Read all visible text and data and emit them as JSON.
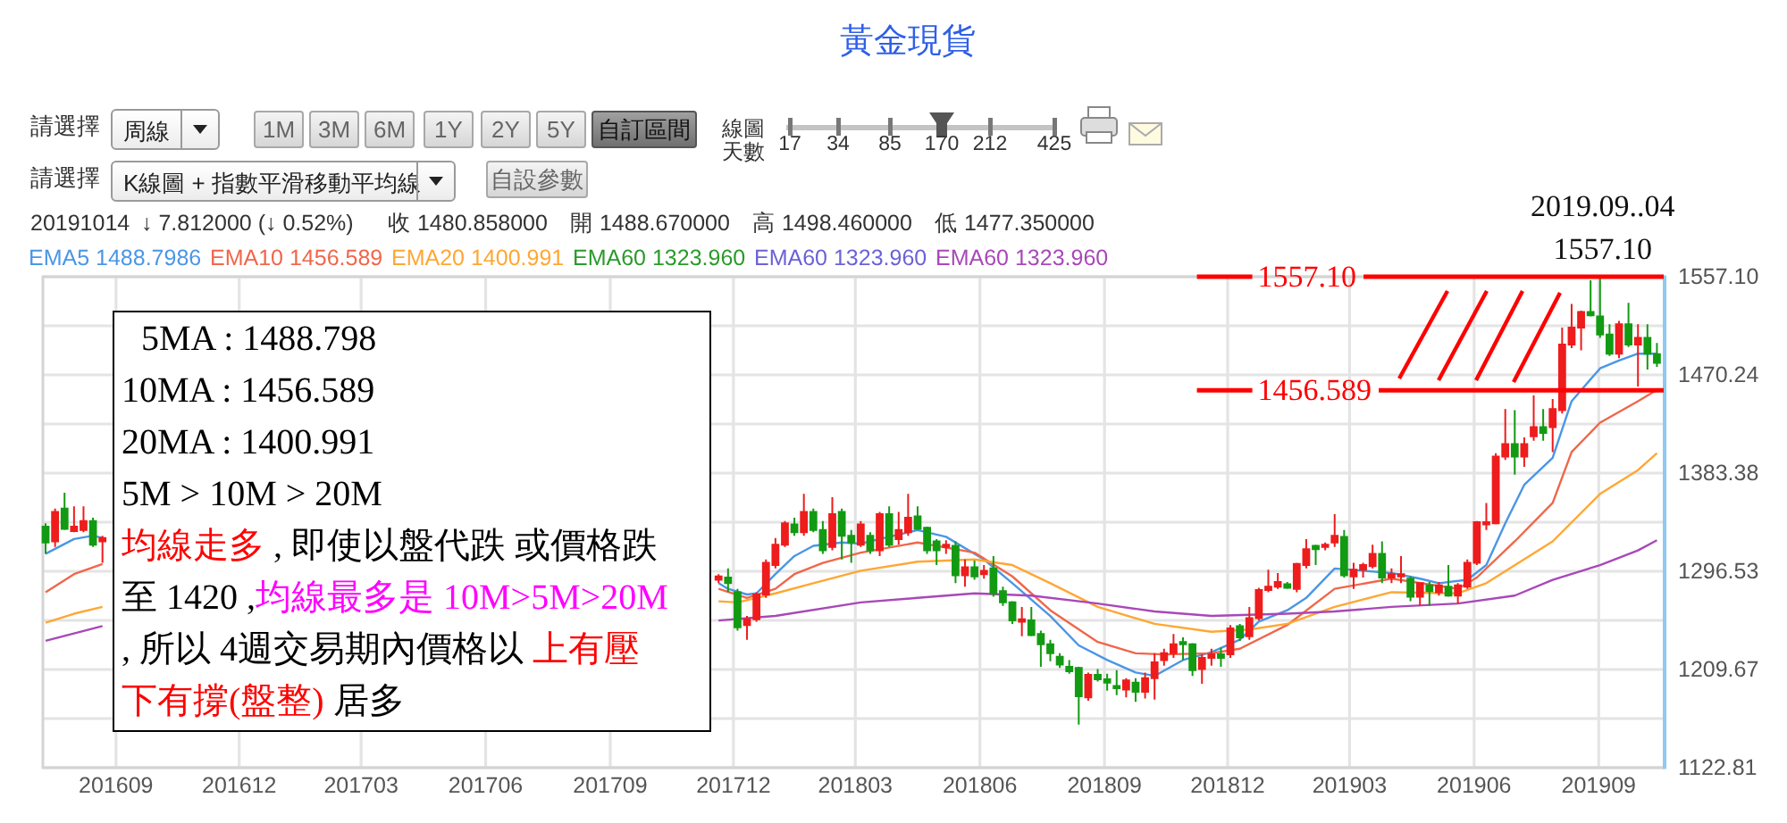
{
  "chart_data": {
    "type": "candlestick",
    "title": "黃金現貨",
    "x": [
      "2016-07-11",
      "2016-07-18",
      "2016-07-25",
      "2016-08-01",
      "2016-08-08",
      "2016-08-15",
      "2016-08-22",
      "2017-11-20",
      "2017-11-27",
      "2017-12-04",
      "2017-12-11",
      "2017-12-18",
      "2017-12-25",
      "2018-01-01",
      "2018-01-08",
      "2018-01-15",
      "2018-01-22",
      "2018-01-29",
      "2018-02-05",
      "2018-02-12",
      "2018-02-19",
      "2018-02-26",
      "2018-03-05",
      "2018-03-12",
      "2018-03-19",
      "2018-03-26",
      "2018-04-02",
      "2018-04-09",
      "2018-04-16",
      "2018-04-23",
      "2018-04-30",
      "2018-05-07",
      "2018-05-14",
      "2018-05-21",
      "2018-05-28",
      "2018-06-04",
      "2018-06-11",
      "2018-06-18",
      "2018-06-25",
      "2018-07-02",
      "2018-07-09",
      "2018-07-16",
      "2018-07-23",
      "2018-07-30",
      "2018-08-06",
      "2018-08-13",
      "2018-08-20",
      "2018-08-27",
      "2018-09-03",
      "2018-09-10",
      "2018-09-17",
      "2018-09-24",
      "2018-10-01",
      "2018-10-08",
      "2018-10-15",
      "2018-10-22",
      "2018-10-29",
      "2018-11-05",
      "2018-11-12",
      "2018-11-19",
      "2018-11-26",
      "2018-12-03",
      "2018-12-10",
      "2018-12-17",
      "2018-12-24",
      "2018-12-31",
      "2019-01-07",
      "2019-01-14",
      "2019-01-21",
      "2019-01-28",
      "2019-02-04",
      "2019-02-11",
      "2019-02-18",
      "2019-02-25",
      "2019-03-04",
      "2019-03-11",
      "2019-03-18",
      "2019-03-25",
      "2019-04-01",
      "2019-04-08",
      "2019-04-15",
      "2019-04-22",
      "2019-04-29",
      "2019-05-06",
      "2019-05-13",
      "2019-05-20",
      "2019-05-27",
      "2019-06-03",
      "2019-06-10",
      "2019-06-17",
      "2019-06-24",
      "2019-07-01",
      "2019-07-08",
      "2019-07-15",
      "2019-07-22",
      "2019-07-29",
      "2019-08-05",
      "2019-08-12",
      "2019-08-19",
      "2019-08-26",
      "2019-09-02",
      "2019-09-09",
      "2019-09-16",
      "2019-09-23",
      "2019-09-30",
      "2019-10-07",
      "2019-10-14"
    ],
    "ohlc": [
      [
        1336,
        1339,
        1312,
        1322
      ],
      [
        1323,
        1352,
        1318,
        1349
      ],
      [
        1352,
        1366,
        1333,
        1334
      ],
      [
        1332,
        1354,
        1331,
        1336
      ],
      [
        1333,
        1354,
        1331,
        1341
      ],
      [
        1341,
        1344,
        1318,
        1320
      ],
      [
        1323,
        1328,
        1304,
        1326
      ],
      [
        1289,
        1294,
        1286,
        1292
      ],
      [
        1291,
        1299,
        1278,
        1286
      ],
      [
        1278,
        1281,
        1244,
        1247
      ],
      [
        1249,
        1257,
        1236,
        1254
      ],
      [
        1254,
        1278,
        1252,
        1276
      ],
      [
        1276,
        1307,
        1273,
        1304
      ],
      [
        1302,
        1326,
        1299,
        1320
      ],
      [
        1320,
        1341,
        1318,
        1339
      ],
      [
        1338,
        1344,
        1328,
        1331
      ],
      [
        1331,
        1365,
        1328,
        1349
      ],
      [
        1349,
        1352,
        1331,
        1333
      ],
      [
        1333,
        1341,
        1312,
        1315
      ],
      [
        1318,
        1362,
        1315,
        1347
      ],
      [
        1349,
        1352,
        1307,
        1328
      ],
      [
        1328,
        1333,
        1304,
        1322
      ],
      [
        1320,
        1341,
        1318,
        1338
      ],
      [
        1328,
        1331,
        1312,
        1315
      ],
      [
        1315,
        1349,
        1310,
        1347
      ],
      [
        1347,
        1354,
        1318,
        1320
      ],
      [
        1325,
        1349,
        1320,
        1333
      ],
      [
        1331,
        1365,
        1328,
        1344
      ],
      [
        1345,
        1354,
        1333,
        1334
      ],
      [
        1335,
        1336,
        1312,
        1315
      ],
      [
        1323,
        1325,
        1302,
        1315
      ],
      [
        1318,
        1324,
        1312,
        1320
      ],
      [
        1319,
        1323,
        1286,
        1293
      ],
      [
        1293,
        1307,
        1283,
        1300
      ],
      [
        1300,
        1306,
        1289,
        1292
      ],
      [
        1294,
        1302,
        1290,
        1297
      ],
      [
        1299,
        1310,
        1274,
        1277
      ],
      [
        1279,
        1283,
        1266,
        1269
      ],
      [
        1269,
        1270,
        1250,
        1253
      ],
      [
        1252,
        1265,
        1239,
        1254
      ],
      [
        1253,
        1265,
        1239,
        1240
      ],
      [
        1241,
        1244,
        1212,
        1232
      ],
      [
        1232,
        1236,
        1217,
        1224
      ],
      [
        1221,
        1224,
        1211,
        1214
      ],
      [
        1212,
        1218,
        1206,
        1208
      ],
      [
        1211,
        1212,
        1161,
        1186
      ],
      [
        1185,
        1207,
        1182,
        1205
      ],
      [
        1205,
        1210,
        1199,
        1201
      ],
      [
        1201,
        1206,
        1191,
        1198
      ],
      [
        1195,
        1209,
        1187,
        1193
      ],
      [
        1192,
        1202,
        1185,
        1200
      ],
      [
        1198,
        1202,
        1181,
        1190
      ],
      [
        1190,
        1207,
        1184,
        1202
      ],
      [
        1202,
        1224,
        1183,
        1216
      ],
      [
        1218,
        1228,
        1213,
        1224
      ],
      [
        1224,
        1241,
        1220,
        1232
      ],
      [
        1234,
        1238,
        1218,
        1232
      ],
      [
        1232,
        1233,
        1204,
        1209
      ],
      [
        1210,
        1223,
        1197,
        1220
      ],
      [
        1220,
        1228,
        1213,
        1223
      ],
      [
        1223,
        1229,
        1212,
        1220
      ],
      [
        1223,
        1249,
        1220,
        1246
      ],
      [
        1248,
        1250,
        1235,
        1238
      ],
      [
        1239,
        1265,
        1236,
        1255
      ],
      [
        1255,
        1282,
        1253,
        1280
      ],
      [
        1280,
        1298,
        1278,
        1283
      ],
      [
        1283,
        1295,
        1281,
        1287
      ],
      [
        1285,
        1287,
        1281,
        1282
      ],
      [
        1281,
        1304,
        1278,
        1303
      ],
      [
        1302,
        1325,
        1299,
        1316
      ],
      [
        1319,
        1320,
        1302,
        1316
      ],
      [
        1318,
        1322,
        1315,
        1320
      ],
      [
        1322,
        1347,
        1318,
        1328
      ],
      [
        1327,
        1333,
        1291,
        1293
      ],
      [
        1292,
        1304,
        1281,
        1298
      ],
      [
        1298,
        1304,
        1291,
        1302
      ],
      [
        1301,
        1320,
        1299,
        1312
      ],
      [
        1312,
        1323,
        1286,
        1291
      ],
      [
        1291,
        1299,
        1286,
        1294
      ],
      [
        1292,
        1310,
        1286,
        1294
      ],
      [
        1290,
        1292,
        1270,
        1274
      ],
      [
        1274,
        1286,
        1266,
        1286
      ],
      [
        1284,
        1287,
        1266,
        1279
      ],
      [
        1278,
        1287,
        1275,
        1284
      ],
      [
        1283,
        1302,
        1274,
        1275
      ],
      [
        1275,
        1286,
        1268,
        1284
      ],
      [
        1283,
        1307,
        1281,
        1304
      ],
      [
        1304,
        1341,
        1302,
        1340
      ],
      [
        1338,
        1357,
        1333,
        1340
      ],
      [
        1339,
        1401,
        1338,
        1398
      ],
      [
        1398,
        1440,
        1395,
        1409
      ],
      [
        1409,
        1439,
        1382,
        1398
      ],
      [
        1398,
        1415,
        1389,
        1409
      ],
      [
        1416,
        1452,
        1412,
        1424
      ],
      [
        1424,
        1440,
        1412,
        1419
      ],
      [
        1424,
        1449,
        1402,
        1440
      ],
      [
        1439,
        1512,
        1436,
        1497
      ],
      [
        1497,
        1533,
        1494,
        1512
      ],
      [
        1512,
        1527,
        1492,
        1526
      ],
      [
        1526,
        1554,
        1522,
        1523
      ],
      [
        1522,
        1557.1,
        1503,
        1506
      ],
      [
        1506,
        1515,
        1487,
        1489
      ],
      [
        1489,
        1518,
        1485,
        1515
      ],
      [
        1515,
        1534,
        1495,
        1497
      ],
      [
        1497,
        1515,
        1460,
        1503
      ],
      [
        1503,
        1515,
        1475,
        1489
      ],
      [
        1488.67,
        1498.46,
        1477.35,
        1480.858
      ]
    ],
    "series": [
      {
        "name": "EMA5 1488.7986",
        "type": "line",
        "color": "#4a96e6",
        "x": [
          "2017-11-20",
          "2017-11-27",
          "2017-12-11",
          "2017-12-18",
          "2018-01-01",
          "2018-01-15",
          "2018-01-29",
          "2018-02-19",
          "2018-03-05",
          "2018-03-26",
          "2018-04-16",
          "2018-05-07",
          "2018-06-04",
          "2018-06-25",
          "2018-07-23",
          "2018-08-13",
          "2018-09-03",
          "2018-09-24",
          "2018-10-08",
          "2018-10-29",
          "2018-11-19",
          "2018-12-10",
          "2018-12-24",
          "2019-01-14",
          "2019-01-28",
          "2019-02-18",
          "2019-03-11",
          "2019-04-01",
          "2019-04-22",
          "2019-05-06",
          "2019-05-27",
          "2019-06-10",
          "2019-06-24",
          "2019-07-08",
          "2019-07-29",
          "2019-08-12",
          "2019-09-02",
          "2019-09-16",
          "2019-09-30",
          "2019-10-14"
        ],
        "values": [
          1286,
          1281,
          1276,
          1277,
          1294,
          1310,
          1319,
          1322,
          1321,
          1327,
          1333,
          1327,
          1307,
          1286,
          1257,
          1231,
          1218,
          1207,
          1204,
          1218,
          1225,
          1236,
          1252,
          1262,
          1273,
          1299,
          1297,
          1295,
          1290,
          1286,
          1289,
          1302,
          1339,
          1373,
          1397,
          1447,
          1476,
          1483,
          1489,
          1489
        ]
      },
      {
        "name": "EMA10 1456.589",
        "type": "line",
        "color": "#f0664a",
        "x": [
          "2017-11-20",
          "2017-12-11",
          "2018-01-01",
          "2018-01-15",
          "2018-02-05",
          "2018-03-05",
          "2018-04-16",
          "2018-05-28",
          "2018-06-25",
          "2018-07-23",
          "2018-08-27",
          "2018-09-24",
          "2018-10-15",
          "2018-11-19",
          "2018-12-10",
          "2019-01-14",
          "2019-02-18",
          "2019-04-01",
          "2019-05-20",
          "2019-06-03",
          "2019-07-01",
          "2019-07-29",
          "2019-08-12",
          "2019-09-02",
          "2019-09-30",
          "2019-10-14"
        ],
        "values": [
          1281,
          1273,
          1281,
          1294,
          1304,
          1313,
          1322,
          1313,
          1292,
          1262,
          1234,
          1224,
          1223,
          1224,
          1228,
          1249,
          1281,
          1290,
          1281,
          1291,
          1323,
          1357,
          1402,
          1428,
          1447,
          1457
        ]
      },
      {
        "name": "EMA20 1400.991",
        "type": "line",
        "color": "#ffa733",
        "x": [
          "2017-11-20",
          "2017-12-04",
          "2018-01-01",
          "2018-01-29",
          "2018-03-05",
          "2018-04-16",
          "2018-05-28",
          "2018-06-25",
          "2018-07-23",
          "2018-08-27",
          "2018-10-08",
          "2018-11-19",
          "2018-12-17",
          "2019-01-14",
          "2019-02-18",
          "2019-04-01",
          "2019-05-20",
          "2019-06-10",
          "2019-07-29",
          "2019-09-02",
          "2019-09-30",
          "2019-10-14"
        ],
        "values": [
          1270,
          1269,
          1277,
          1286,
          1297,
          1305,
          1307,
          1302,
          1286,
          1265,
          1250,
          1243,
          1245,
          1250,
          1265,
          1278,
          1277,
          1286,
          1323,
          1365,
          1386,
          1401
        ]
      },
      {
        "name": "EMA60 1323.960",
        "type": "line",
        "color": "#a848b8",
        "x": [
          "2017-11-20",
          "2018-01-01",
          "2018-03-05",
          "2018-04-16",
          "2018-05-28",
          "2018-07-09",
          "2018-08-27",
          "2018-10-08",
          "2018-11-19",
          "2019-01-14",
          "2019-02-18",
          "2019-04-01",
          "2019-05-20",
          "2019-07-01",
          "2019-07-29",
          "2019-09-02",
          "2019-09-30",
          "2019-10-14"
        ],
        "values": [
          1253,
          1257,
          1269,
          1273,
          1277,
          1275,
          1268,
          1261,
          1257,
          1259,
          1261,
          1265,
          1268,
          1275,
          1289,
          1302,
          1315,
          1324
        ]
      },
      {
        "type": "line",
        "color": "#4a96e6",
        "x": [
          "2016-07-11",
          "2016-08-01",
          "2016-08-15",
          "2016-08-22"
        ],
        "values": [
          1312,
          1325,
          1328,
          1326
        ]
      },
      {
        "type": "line",
        "color": "#f0664a",
        "x": [
          "2016-07-11",
          "2016-08-01",
          "2016-08-22"
        ],
        "values": [
          1278,
          1294,
          1303
        ]
      },
      {
        "type": "line",
        "color": "#ffa733",
        "x": [
          "2016-07-11",
          "2016-08-01",
          "2016-08-22"
        ],
        "values": [
          1251,
          1259,
          1265
        ]
      },
      {
        "type": "line",
        "color": "#a848b8",
        "x": [
          "2016-07-11",
          "2016-08-22"
        ],
        "values": [
          1235,
          1248
        ]
      }
    ],
    "xlim": [
      "2016-07-09",
      "2019-10-19"
    ],
    "xticks": [
      {
        "value": "2016-09-01",
        "label": "201609"
      },
      {
        "value": "2016-12-01",
        "label": "201612"
      },
      {
        "value": "2017-03-01",
        "label": "201703"
      },
      {
        "value": "2017-06-01",
        "label": "201706"
      },
      {
        "value": "2017-09-01",
        "label": "201709"
      },
      {
        "value": "2017-12-01",
        "label": "201712"
      },
      {
        "value": "2018-03-01",
        "label": "201803"
      },
      {
        "value": "2018-06-01",
        "label": "201806"
      },
      {
        "value": "2018-09-01",
        "label": "201809"
      },
      {
        "value": "2018-12-01",
        "label": "201812"
      },
      {
        "value": "2019-03-01",
        "label": "201903"
      },
      {
        "value": "2019-06-01",
        "label": "201906"
      },
      {
        "value": "2019-09-01",
        "label": "201909"
      }
    ],
    "ylim": [
      1122.81,
      1557.1
    ],
    "yticks": [
      {
        "value": 1557.1,
        "label": "1557.10"
      },
      {
        "value": 1513.67,
        "label": null
      },
      1470.24,
      {
        "value": 1426.81,
        "label": null
      },
      1383.38,
      {
        "value": 1339.95,
        "label": null
      },
      1296.53,
      {
        "value": 1253.1,
        "label": null
      },
      1209.67,
      {
        "value": 1166.24,
        "label": null
      },
      1122.81
    ],
    "grid": true,
    "legend": "top left",
    "ref_lines": [
      {
        "axis": "y",
        "value": 1557.1,
        "label": "1557.10",
        "color": "#ff0000"
      },
      {
        "axis": "y",
        "value": 1456.589,
        "label": "1456.589",
        "color": "#ff0000"
      }
    ],
    "annotations": [
      "請選擇",
      "周線",
      "1M",
      "3M",
      "6M",
      "1Y",
      "2Y",
      "5Y",
      "自訂區間",
      "線圖",
      "天數",
      "17",
      "34",
      "85",
      "170",
      "212",
      "425",
      "請選擇",
      "K線圖 + 指數平滑移動平均線",
      "自設參數",
      "20191014",
      "↓ 7.812000 (↓ 0.52%)",
      "收 1480.858000",
      "開 1488.670000",
      "高 1498.460000",
      "低 1477.350000",
      "5MA : 1488.798",
      "10MA : 1456.589",
      "20MA : 1400.991",
      "5M > 10M > 20M",
      "均線走多",
      " , 即使以盤代跌 或價格跌",
      "至 1420 ,",
      "均線最多是 10M>5M>20M",
      ", 所以 4週交易期內價格以 ",
      "上有壓",
      "下有撐(盤整)",
      " 居多",
      "EMA60 1323.960",
      "EMA60 1323.960",
      {
        "text": "2019.09..04",
        "x": "2019-09-04",
        "y": 1557.1
      },
      {
        "text": "1557.10",
        "x": "2019-09-04",
        "y": 1557.1
      }
    ]
  }
}
